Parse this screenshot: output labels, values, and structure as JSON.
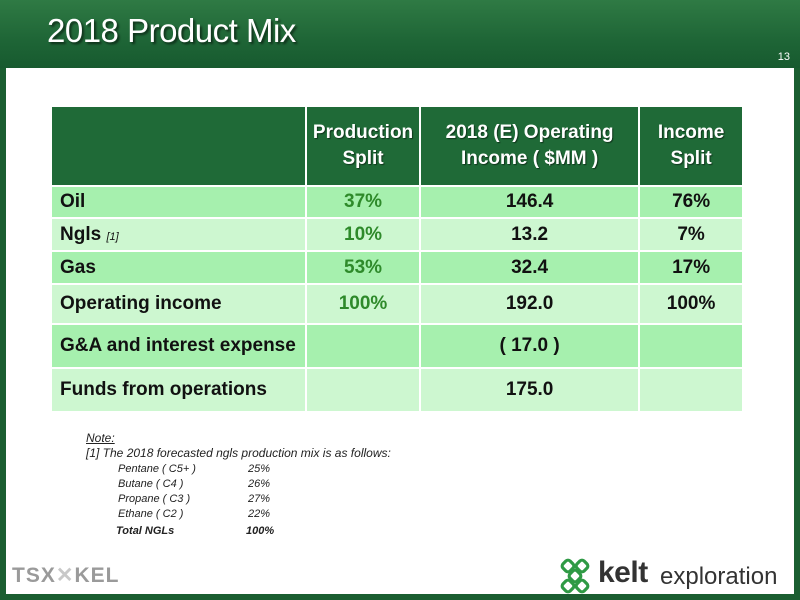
{
  "title": "2018 Product Mix",
  "page_number": "13",
  "table": {
    "headers": {
      "col1": [
        "Production",
        "Split"
      ],
      "col2": [
        "2018 (E) Operating",
        "Income ( $MM )"
      ],
      "col3": [
        "Income",
        "Split"
      ]
    },
    "rows": [
      {
        "label": "Oil",
        "footnote": "",
        "production_split": "37%",
        "operating_income": "146.4",
        "income_split": "76%"
      },
      {
        "label": "Ngls",
        "footnote": "[1]",
        "production_split": "10%",
        "operating_income": "13.2",
        "income_split": "7%"
      },
      {
        "label": "Gas",
        "footnote": "",
        "production_split": "53%",
        "operating_income": "32.4",
        "income_split": "17%"
      },
      {
        "label": "Operating income",
        "footnote": "",
        "production_split": "100%",
        "operating_income": "192.0",
        "income_split": "100%"
      },
      {
        "label": "G&A and interest expense",
        "footnote": "",
        "production_split": "",
        "operating_income": "( 17.0 )",
        "income_split": ""
      },
      {
        "label": "Funds from operations",
        "footnote": "",
        "production_split": "",
        "operating_income": "175.0",
        "income_split": ""
      }
    ]
  },
  "note": {
    "heading": "Note:",
    "text": "[1] The 2018 forecasted ngls production mix is as follows:",
    "mix": [
      {
        "name": "Pentane ( C5+ )",
        "value": "25%"
      },
      {
        "name": "Butane ( C4 )",
        "value": "26%"
      },
      {
        "name": "Propane ( C3 )",
        "value": "27%"
      },
      {
        "name": "Ethane ( C2 )",
        "value": "22%"
      }
    ],
    "total": {
      "name": "Total NGLs",
      "value": "100%"
    }
  },
  "footer": {
    "exchange_logo_text": [
      "TSX",
      "KEL"
    ],
    "brand": "kelt",
    "brand_suffix": "exploration"
  },
  "colors": {
    "header_green": "#1e6536",
    "row_dark": "#a6f0ae",
    "row_light": "#cdf7d0",
    "split_text": "#2e8a2a"
  }
}
